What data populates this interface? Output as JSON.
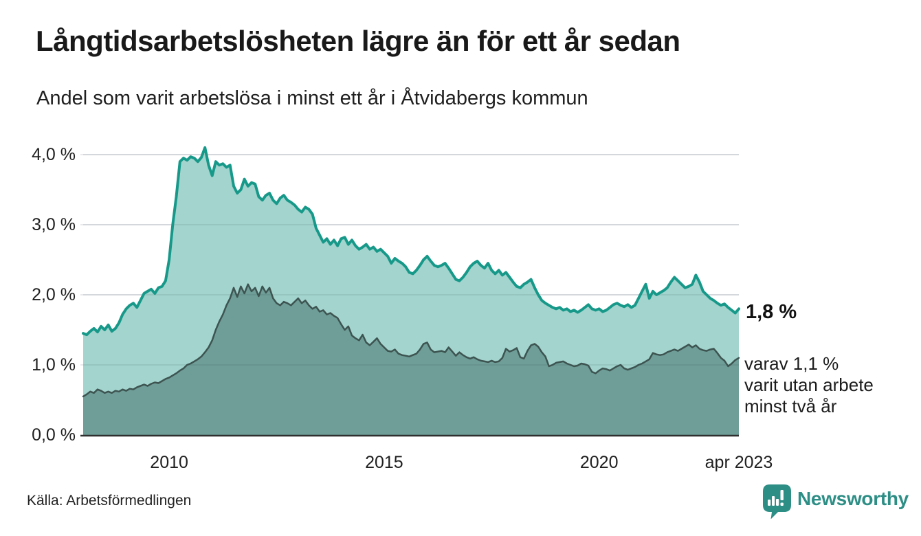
{
  "header": {
    "title": "Långtidsarbetslösheten lägre än för ett år sedan",
    "subtitle": "Andel som varit arbetslösa i minst ett år i Åtvidabergs kommun"
  },
  "chart_data": {
    "type": "area",
    "title": "Långtidsarbetslösheten lägre än för ett år sedan",
    "subtitle": "Andel som varit arbetslösa i minst ett år i Åtvidabergs kommun",
    "unit": "%",
    "x_start_year": 2008,
    "x_end": "apr 2023",
    "frequency": "monthly",
    "grid": true,
    "ylim": [
      0,
      4.35
    ],
    "style": {
      "grid_color": "#e8e8ed",
      "axis_color": "#2f2f2f",
      "background": "#ffffff"
    },
    "y_axis": {
      "ticks": [
        {
          "label": "0,0 %",
          "value": 0
        },
        {
          "label": "1,0 %",
          "value": 1
        },
        {
          "label": "2,0 %",
          "value": 2
        },
        {
          "label": "3,0 %",
          "value": 3
        },
        {
          "label": "4,0 %",
          "value": 4
        }
      ]
    },
    "x_axis": {
      "ticks": [
        {
          "label": "2010",
          "year": 2010.0
        },
        {
          "label": "2015",
          "year": 2015.0
        },
        {
          "label": "2020",
          "year": 2020.0
        },
        {
          "label": "apr 2023",
          "year": 2023.25
        }
      ]
    },
    "series": [
      {
        "name": "Arbetslösa minst ett år",
        "line_color": "#17998a",
        "fill_color": "#a3d4ce",
        "line_width": 4,
        "latest_value": "1,8 %",
        "values": [
          1.45,
          1.43,
          1.48,
          1.52,
          1.47,
          1.55,
          1.5,
          1.57,
          1.48,
          1.52,
          1.6,
          1.72,
          1.8,
          1.85,
          1.88,
          1.82,
          1.92,
          2.02,
          2.05,
          2.08,
          2.02,
          2.1,
          2.12,
          2.2,
          2.5,
          3.0,
          3.4,
          3.9,
          3.95,
          3.92,
          3.97,
          3.95,
          3.9,
          3.96,
          4.1,
          3.85,
          3.7,
          3.9,
          3.85,
          3.87,
          3.82,
          3.85,
          3.55,
          3.45,
          3.5,
          3.65,
          3.55,
          3.6,
          3.58,
          3.4,
          3.35,
          3.42,
          3.45,
          3.35,
          3.3,
          3.38,
          3.42,
          3.35,
          3.32,
          3.28,
          3.22,
          3.18,
          3.25,
          3.22,
          3.15,
          2.95,
          2.85,
          2.75,
          2.8,
          2.72,
          2.78,
          2.7,
          2.8,
          2.82,
          2.72,
          2.78,
          2.7,
          2.65,
          2.68,
          2.72,
          2.65,
          2.68,
          2.62,
          2.65,
          2.6,
          2.55,
          2.45,
          2.52,
          2.48,
          2.45,
          2.4,
          2.32,
          2.3,
          2.35,
          2.42,
          2.5,
          2.55,
          2.48,
          2.42,
          2.4,
          2.42,
          2.45,
          2.38,
          2.3,
          2.22,
          2.2,
          2.25,
          2.32,
          2.4,
          2.45,
          2.48,
          2.42,
          2.38,
          2.45,
          2.35,
          2.3,
          2.35,
          2.28,
          2.32,
          2.25,
          2.18,
          2.12,
          2.1,
          2.15,
          2.18,
          2.22,
          2.1,
          2.0,
          1.92,
          1.88,
          1.85,
          1.82,
          1.8,
          1.82,
          1.78,
          1.8,
          1.76,
          1.78,
          1.75,
          1.78,
          1.82,
          1.86,
          1.8,
          1.78,
          1.8,
          1.76,
          1.78,
          1.82,
          1.86,
          1.88,
          1.85,
          1.83,
          1.86,
          1.82,
          1.85,
          1.95,
          2.05,
          2.15,
          1.95,
          2.05,
          2.0,
          2.03,
          2.06,
          2.1,
          2.18,
          2.25,
          2.2,
          2.15,
          2.1,
          2.12,
          2.15,
          2.28,
          2.18,
          2.05,
          2.0,
          1.95,
          1.92,
          1.88,
          1.85,
          1.87,
          1.82,
          1.78,
          1.74,
          1.8
        ]
      },
      {
        "name": "Arbetslösa minst två år",
        "line_color": "#3d5451",
        "fill_color": "#6f9d97",
        "line_width": 2.5,
        "latest_value": "1,1 %",
        "values": [
          0.55,
          0.58,
          0.62,
          0.6,
          0.65,
          0.63,
          0.6,
          0.62,
          0.6,
          0.63,
          0.62,
          0.65,
          0.63,
          0.66,
          0.65,
          0.68,
          0.7,
          0.72,
          0.7,
          0.73,
          0.75,
          0.74,
          0.77,
          0.8,
          0.82,
          0.85,
          0.88,
          0.92,
          0.95,
          1.0,
          1.02,
          1.05,
          1.08,
          1.12,
          1.18,
          1.25,
          1.35,
          1.5,
          1.62,
          1.72,
          1.85,
          1.95,
          2.1,
          1.97,
          2.12,
          2.02,
          2.15,
          2.05,
          2.1,
          1.98,
          2.12,
          2.03,
          2.1,
          1.95,
          1.88,
          1.85,
          1.9,
          1.88,
          1.85,
          1.9,
          1.95,
          1.88,
          1.92,
          1.85,
          1.8,
          1.83,
          1.76,
          1.78,
          1.72,
          1.74,
          1.7,
          1.67,
          1.58,
          1.5,
          1.55,
          1.42,
          1.38,
          1.35,
          1.43,
          1.32,
          1.28,
          1.33,
          1.38,
          1.3,
          1.25,
          1.2,
          1.19,
          1.22,
          1.16,
          1.14,
          1.13,
          1.12,
          1.14,
          1.16,
          1.22,
          1.3,
          1.32,
          1.22,
          1.18,
          1.19,
          1.2,
          1.18,
          1.25,
          1.19,
          1.13,
          1.18,
          1.14,
          1.11,
          1.09,
          1.11,
          1.08,
          1.06,
          1.05,
          1.04,
          1.06,
          1.04,
          1.05,
          1.1,
          1.23,
          1.19,
          1.21,
          1.24,
          1.11,
          1.09,
          1.2,
          1.28,
          1.3,
          1.26,
          1.18,
          1.12,
          0.98,
          1.0,
          1.03,
          1.04,
          1.05,
          1.02,
          1.0,
          0.98,
          0.99,
          1.02,
          1.01,
          0.99,
          0.9,
          0.88,
          0.92,
          0.95,
          0.94,
          0.92,
          0.95,
          0.98,
          1.0,
          0.95,
          0.93,
          0.95,
          0.97,
          1.0,
          1.02,
          1.05,
          1.08,
          1.17,
          1.15,
          1.14,
          1.15,
          1.18,
          1.2,
          1.22,
          1.2,
          1.23,
          1.26,
          1.29,
          1.25,
          1.28,
          1.23,
          1.21,
          1.2,
          1.22,
          1.23,
          1.17,
          1.1,
          1.06,
          0.98,
          1.02,
          1.07,
          1.1
        ]
      }
    ],
    "annotations": {
      "latest": {
        "text": "1,8 %"
      },
      "sub": {
        "lines": [
          "varav 1,1 %",
          "varit utan arbete",
          "minst två år"
        ]
      }
    },
    "legend_position": "none"
  },
  "footer": {
    "source": "Källa: Arbetsförmedlingen",
    "logo_text": "Newsworthy",
    "logo_color": "#2d8e86"
  }
}
